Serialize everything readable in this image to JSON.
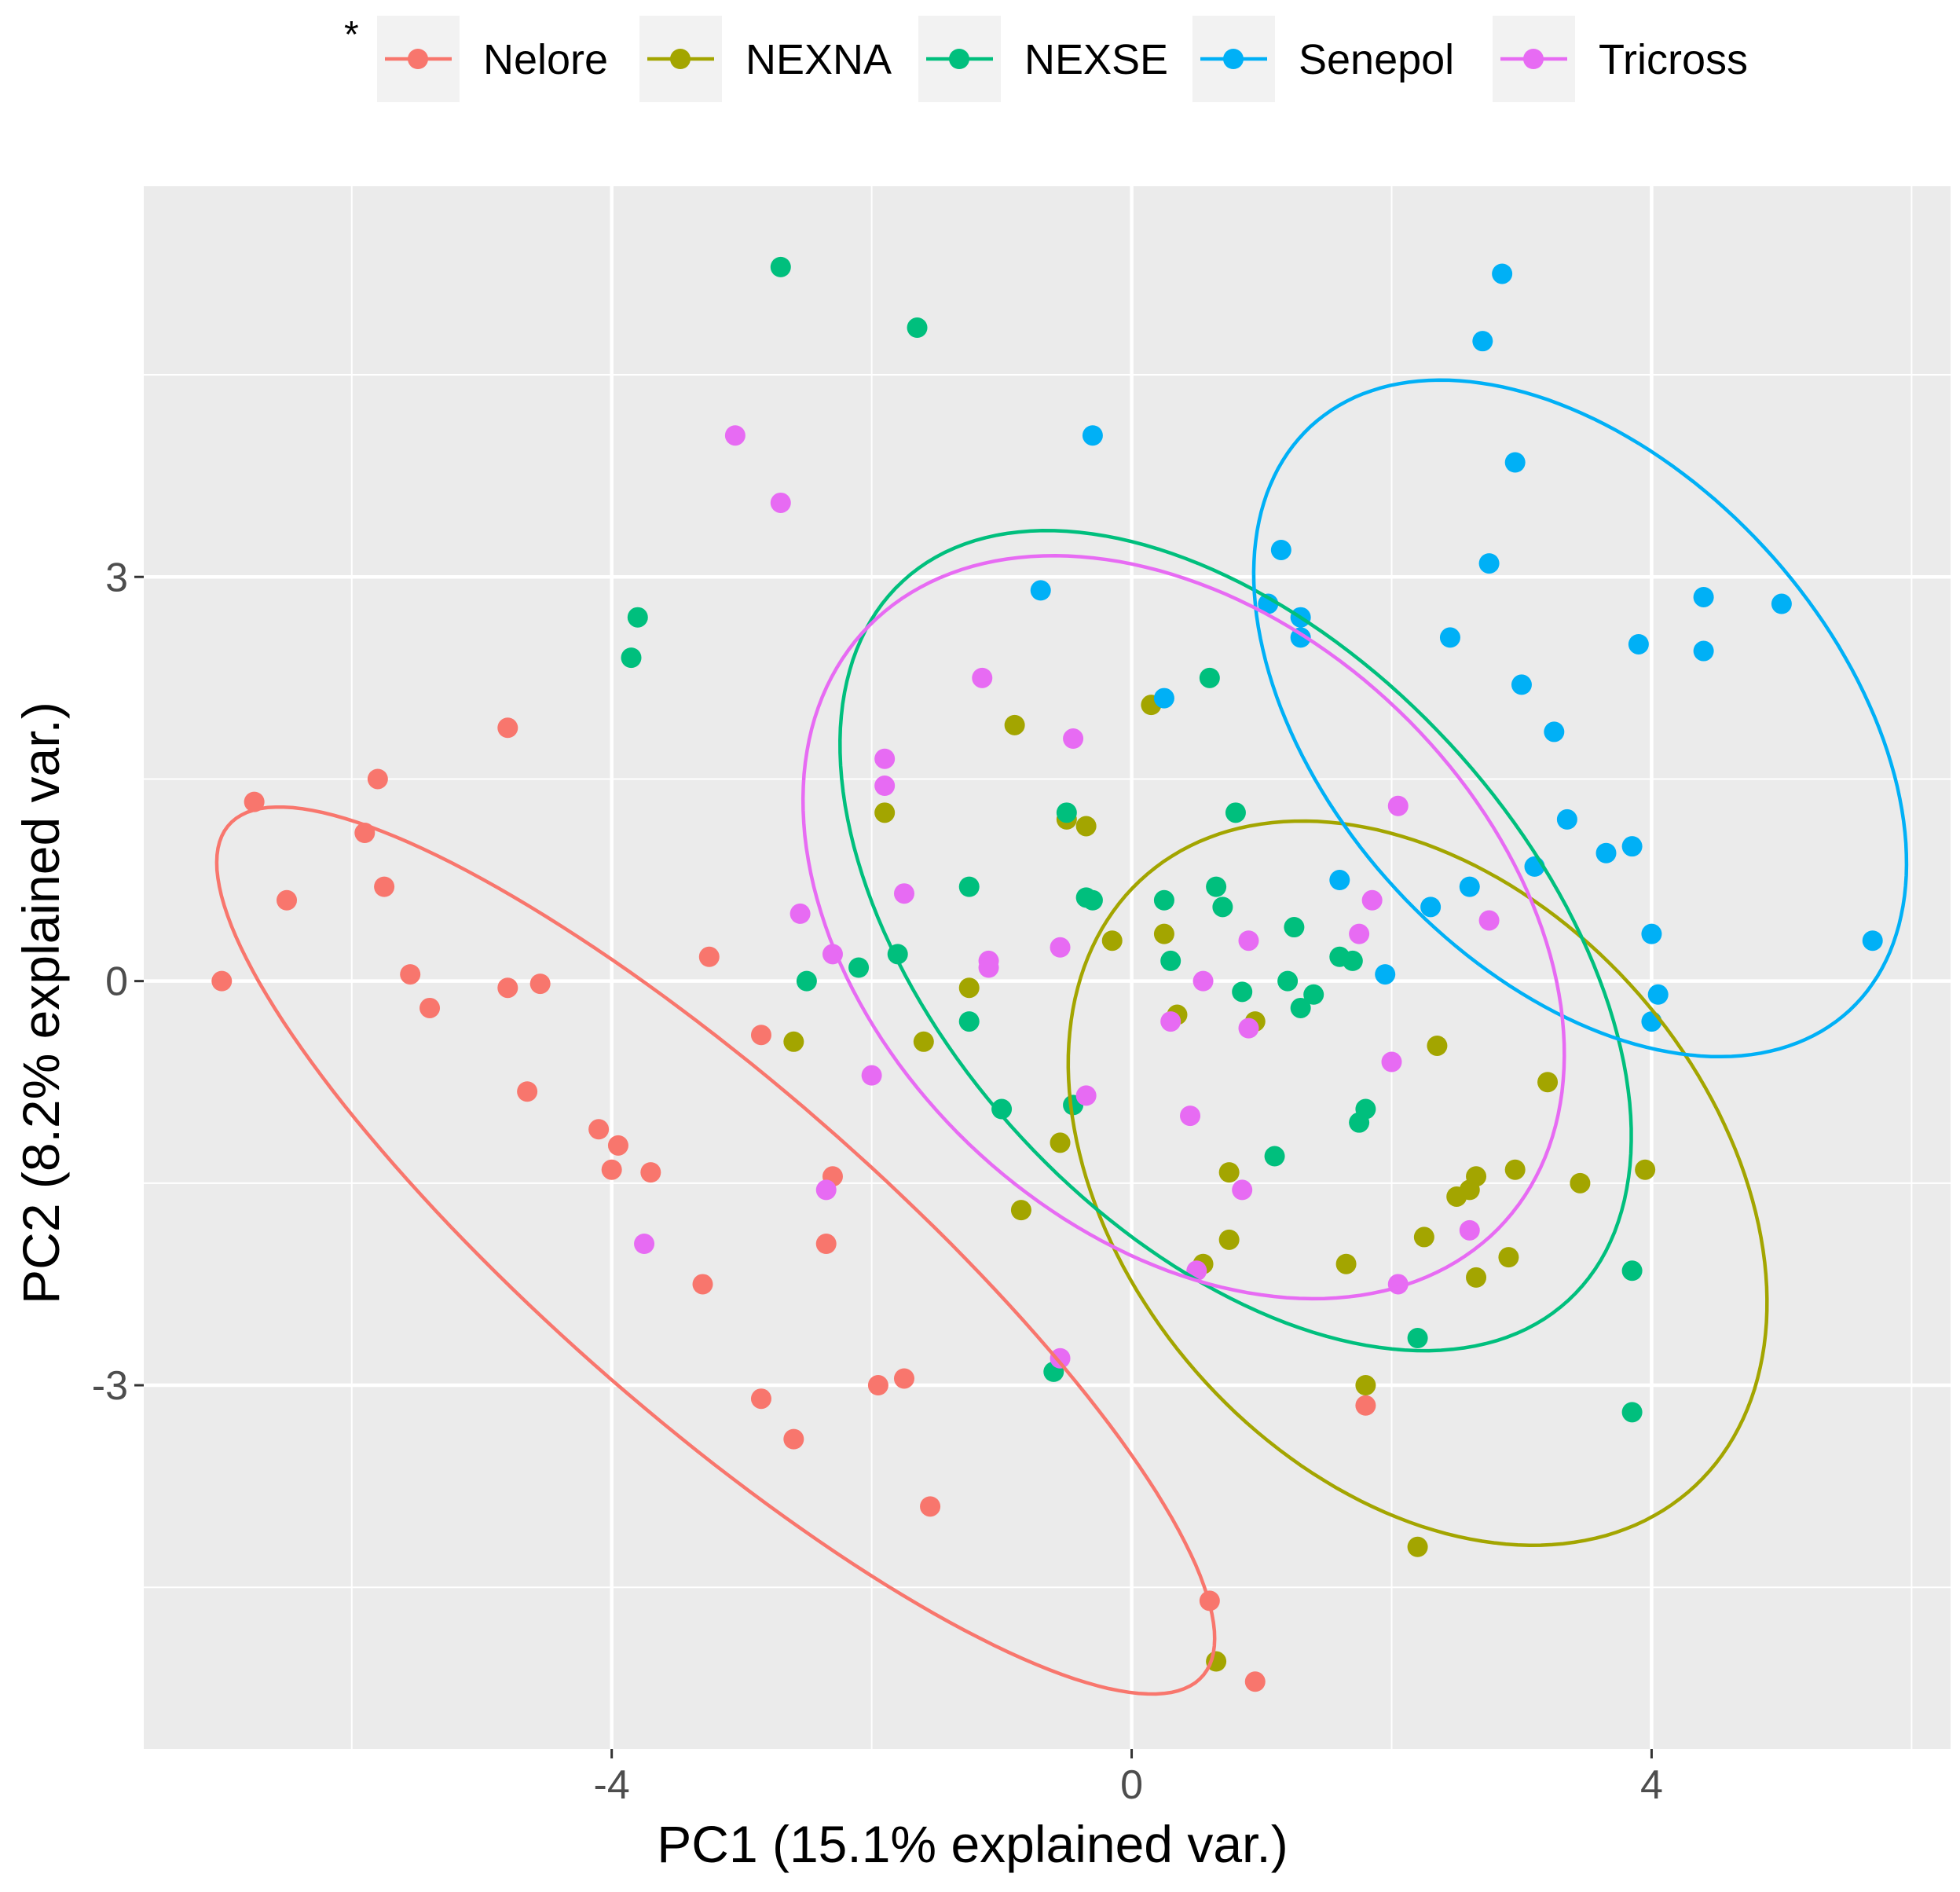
{
  "chart_data": {
    "type": "scatter",
    "title": "",
    "legend_marker": "*",
    "xlabel": "PC1 (15.1% explained var.)",
    "ylabel": "PC2 (8.2% explained var.)",
    "xlim": [
      -7.6,
      6.3
    ],
    "ylim": [
      -5.7,
      5.9
    ],
    "xticks": [
      -4,
      0,
      4
    ],
    "xtick_labels": [
      "-4",
      "0",
      "4"
    ],
    "yticks": [
      -3,
      0,
      3
    ],
    "ytick_labels": [
      "-3",
      "0",
      "3"
    ],
    "grid": true,
    "legend_position": "top",
    "series": [
      {
        "name": "Nelore",
        "color": "#F8766D",
        "points": [
          [
            -7.0,
            0.0
          ],
          [
            -6.75,
            1.33
          ],
          [
            -6.5,
            0.6
          ],
          [
            -5.8,
            1.5
          ],
          [
            -5.9,
            1.1
          ],
          [
            -5.75,
            0.7
          ],
          [
            -5.55,
            0.05
          ],
          [
            -5.4,
            -0.2
          ],
          [
            -4.8,
            1.88
          ],
          [
            -4.8,
            -0.05
          ],
          [
            -4.55,
            -0.02
          ],
          [
            -4.65,
            -0.82
          ],
          [
            -4.1,
            -1.1
          ],
          [
            -3.95,
            -1.22
          ],
          [
            -4.0,
            -1.4
          ],
          [
            -3.7,
            -1.42
          ],
          [
            -3.25,
            0.18
          ],
          [
            -3.3,
            -2.25
          ],
          [
            -2.85,
            -0.4
          ],
          [
            -2.6,
            -3.4
          ],
          [
            -2.85,
            -3.1
          ],
          [
            -2.3,
            -1.45
          ],
          [
            -2.35,
            -1.95
          ],
          [
            -1.95,
            -3.0
          ],
          [
            -1.75,
            -2.95
          ],
          [
            -1.55,
            -3.9
          ],
          [
            0.6,
            -4.6
          ],
          [
            0.95,
            -5.2
          ],
          [
            1.8,
            -3.15
          ]
        ]
      },
      {
        "name": "NEXNA",
        "color": "#A3A500",
        "points": [
          [
            -0.9,
            1.9
          ],
          [
            -1.9,
            1.25
          ],
          [
            -0.35,
            1.15
          ],
          [
            -0.5,
            1.2
          ],
          [
            0.15,
            2.05
          ],
          [
            -1.25,
            -0.05
          ],
          [
            -1.6,
            -0.45
          ],
          [
            -2.6,
            -0.45
          ],
          [
            -0.85,
            -1.7
          ],
          [
            -0.55,
            -1.2
          ],
          [
            -0.15,
            0.3
          ],
          [
            0.25,
            0.35
          ],
          [
            0.35,
            -0.25
          ],
          [
            0.95,
            -0.3
          ],
          [
            0.75,
            -1.42
          ],
          [
            0.75,
            -1.92
          ],
          [
            0.55,
            -2.1
          ],
          [
            1.65,
            -2.1
          ],
          [
            1.8,
            -3.0
          ],
          [
            2.25,
            -1.9
          ],
          [
            2.35,
            -0.48
          ],
          [
            2.5,
            -1.6
          ],
          [
            2.6,
            -1.55
          ],
          [
            2.65,
            -1.45
          ],
          [
            2.65,
            -2.2
          ],
          [
            2.9,
            -2.05
          ],
          [
            2.95,
            -1.4
          ],
          [
            3.2,
            -0.75
          ],
          [
            3.45,
            -1.5
          ],
          [
            3.95,
            -1.4
          ],
          [
            2.2,
            -4.2
          ],
          [
            0.65,
            -5.05
          ]
        ]
      },
      {
        "name": "NEXSE",
        "color": "#00BF7D",
        "points": [
          [
            -2.7,
            5.3
          ],
          [
            -1.65,
            4.85
          ],
          [
            -3.8,
            2.7
          ],
          [
            -3.85,
            2.4
          ],
          [
            -2.5,
            0.0
          ],
          [
            -2.1,
            0.1
          ],
          [
            -1.8,
            0.2
          ],
          [
            -1.25,
            0.7
          ],
          [
            -0.5,
            1.25
          ],
          [
            -0.35,
            0.62
          ],
          [
            -0.3,
            0.6
          ],
          [
            -1.25,
            -0.3
          ],
          [
            -1.0,
            -0.95
          ],
          [
            -0.45,
            -0.92
          ],
          [
            -0.6,
            -2.9
          ],
          [
            0.25,
            0.6
          ],
          [
            0.3,
            0.15
          ],
          [
            0.6,
            2.25
          ],
          [
            0.65,
            0.7
          ],
          [
            0.7,
            0.55
          ],
          [
            0.8,
            1.25
          ],
          [
            0.85,
            -0.08
          ],
          [
            1.25,
            0.4
          ],
          [
            1.2,
            0.0
          ],
          [
            1.3,
            -0.2
          ],
          [
            1.4,
            -0.1
          ],
          [
            1.6,
            0.18
          ],
          [
            1.7,
            0.15
          ],
          [
            1.75,
            -1.05
          ],
          [
            1.8,
            -0.95
          ],
          [
            1.1,
            -1.3
          ],
          [
            2.2,
            -2.65
          ],
          [
            3.85,
            -2.15
          ],
          [
            3.85,
            -3.2
          ]
        ]
      },
      {
        "name": "Senepol",
        "color": "#00B0F6",
        "points": [
          [
            2.85,
            5.25
          ],
          [
            2.7,
            4.75
          ],
          [
            2.95,
            3.85
          ],
          [
            -0.3,
            4.05
          ],
          [
            -0.7,
            2.9
          ],
          [
            1.15,
            3.2
          ],
          [
            1.05,
            2.8
          ],
          [
            1.3,
            2.7
          ],
          [
            1.3,
            2.55
          ],
          [
            2.75,
            3.1
          ],
          [
            2.45,
            2.55
          ],
          [
            3.0,
            2.2
          ],
          [
            3.25,
            1.85
          ],
          [
            4.4,
            2.85
          ],
          [
            3.9,
            2.5
          ],
          [
            4.4,
            2.45
          ],
          [
            5.0,
            2.8
          ],
          [
            3.35,
            1.2
          ],
          [
            3.1,
            0.85
          ],
          [
            3.65,
            0.95
          ],
          [
            3.85,
            1.0
          ],
          [
            2.6,
            0.7
          ],
          [
            2.3,
            0.55
          ],
          [
            1.6,
            0.75
          ],
          [
            1.95,
            0.05
          ],
          [
            4.0,
            0.35
          ],
          [
            4.05,
            -0.1
          ],
          [
            4.0,
            -0.3
          ],
          [
            5.7,
            0.3
          ],
          [
            0.25,
            2.1
          ]
        ]
      },
      {
        "name": "Tricross",
        "color": "#E76BF3",
        "points": [
          [
            -3.05,
            4.05
          ],
          [
            -2.7,
            3.55
          ],
          [
            -1.15,
            2.25
          ],
          [
            -0.45,
            1.8
          ],
          [
            -1.9,
            1.65
          ],
          [
            -1.9,
            1.45
          ],
          [
            -1.75,
            0.65
          ],
          [
            -2.55,
            0.5
          ],
          [
            -2.3,
            0.2
          ],
          [
            -1.1,
            0.15
          ],
          [
            -1.1,
            0.1
          ],
          [
            -0.55,
            0.25
          ],
          [
            -2.0,
            -0.7
          ],
          [
            -2.35,
            -1.55
          ],
          [
            -3.75,
            -1.95
          ],
          [
            -0.35,
            -0.85
          ],
          [
            0.55,
            0.0
          ],
          [
            0.9,
            0.3
          ],
          [
            0.3,
            -0.3
          ],
          [
            0.9,
            -0.35
          ],
          [
            0.45,
            -1.0
          ],
          [
            0.85,
            -1.55
          ],
          [
            1.85,
            0.6
          ],
          [
            1.75,
            0.35
          ],
          [
            2.05,
            1.3
          ],
          [
            2.0,
            -0.6
          ],
          [
            2.75,
            0.45
          ],
          [
            2.6,
            -1.85
          ],
          [
            2.05,
            -2.25
          ],
          [
            0.5,
            -2.15
          ],
          [
            -0.55,
            -2.8
          ]
        ]
      }
    ],
    "ellipses": [
      {
        "series": "Nelore",
        "center": [
          -3.2,
          -2.0
        ],
        "semi_major": 4.9,
        "semi_minor": 1.25,
        "angle_deg": -40
      },
      {
        "series": "NEXNA",
        "center": [
          2.2,
          -1.5
        ],
        "semi_major": 3.1,
        "semi_minor": 2.2,
        "angle_deg": -45
      },
      {
        "series": "NEXSE",
        "center": [
          0.8,
          0.3
        ],
        "semi_major": 3.7,
        "semi_minor": 2.2,
        "angle_deg": -45
      },
      {
        "series": "Senepol",
        "center": [
          3.45,
          1.95
        ],
        "semi_major": 3.0,
        "semi_minor": 1.9,
        "angle_deg": -45
      },
      {
        "series": "Tricross",
        "center": [
          0.4,
          0.4
        ],
        "semi_major": 3.3,
        "semi_minor": 2.3,
        "angle_deg": -40
      }
    ]
  }
}
